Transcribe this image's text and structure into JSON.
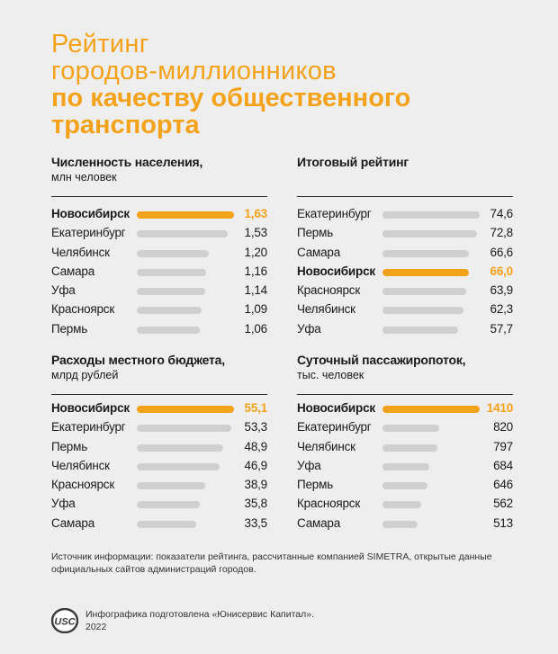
{
  "title": {
    "line1": "Рейтинг",
    "line2": "городов-миллионников",
    "line3": "по качеству общественного",
    "line4": "транспорта"
  },
  "colors": {
    "accent": "#f5a21b",
    "bar": "#cfcfcf",
    "background": "#eeeeee"
  },
  "chart_data": [
    {
      "type": "bar",
      "title": "Численность населения,",
      "subtitle": "млн человек",
      "max": 1.63,
      "categories": [
        "Новосибирск",
        "Екатеринбург",
        "Челябинск",
        "Самара",
        "Уфа",
        "Красноярск",
        "Пермь"
      ],
      "values": [
        1.63,
        1.53,
        1.2,
        1.16,
        1.14,
        1.09,
        1.06
      ],
      "labels": [
        "1,63",
        "1,53",
        "1,20",
        "1,16",
        "1,14",
        "1,09",
        "1,06"
      ],
      "highlight": "Новосибирск"
    },
    {
      "type": "bar",
      "title": "Итоговый рейтинг",
      "subtitle": "",
      "max": 74.6,
      "categories": [
        "Екатеринбург",
        "Пермь",
        "Самара",
        "Новосибирск",
        "Красноярск",
        "Челябинск",
        "Уфа"
      ],
      "values": [
        74.6,
        72.8,
        66.6,
        66.0,
        63.9,
        62.3,
        57.7
      ],
      "labels": [
        "74,6",
        "72,8",
        "66,6",
        "66,0",
        "63,9",
        "62,3",
        "57,7"
      ],
      "highlight": "Новосибирск"
    },
    {
      "type": "bar",
      "title": "Расходы местного бюджета,",
      "subtitle": "млрд рублей",
      "max": 55.1,
      "categories": [
        "Новосибирск",
        "Екатеринбург",
        "Пермь",
        "Челябинск",
        "Красноярск",
        "Уфа",
        "Самара"
      ],
      "values": [
        55.1,
        53.3,
        48.9,
        46.9,
        38.9,
        35.8,
        33.5
      ],
      "labels": [
        "55,1",
        "53,3",
        "48,9",
        "46,9",
        "38,9",
        "35,8",
        "33,5"
      ],
      "highlight": "Новосибирск"
    },
    {
      "type": "bar",
      "title": "Суточный пассажиропоток,",
      "subtitle": "тыс. человек",
      "max": 1410,
      "categories": [
        "Новосибирск",
        "Екатеринбург",
        "Челябинск",
        "Уфа",
        "Пермь",
        "Красноярск",
        "Самара"
      ],
      "values": [
        1410,
        820,
        797,
        684,
        646,
        562,
        513
      ],
      "labels": [
        "1410",
        "820",
        "797",
        "684",
        "646",
        "562",
        "513"
      ],
      "highlight": "Новосибирск"
    }
  ],
  "source": "Источник информации: показатели рейтинга, рассчитанные компанией SIMETRA, открытые данные официальных сайтов администраций городов.",
  "credit_line1": "Инфографика подготовлена «Юнисервис Капитал».",
  "credit_line2": "2022",
  "logo_text": "USC"
}
